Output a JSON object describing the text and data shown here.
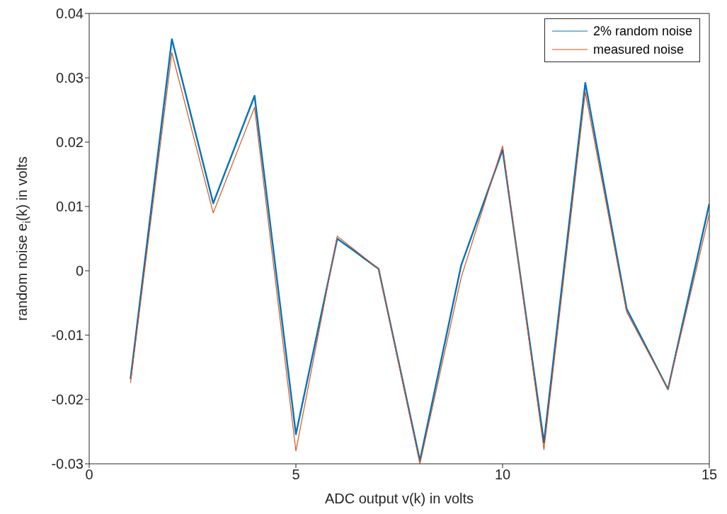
{
  "chart_data": {
    "type": "line",
    "xlabel": "ADC output v(k) in volts",
    "ylabel": "random noise e$_{i}$(k) in volts",
    "x": [
      1,
      2,
      3,
      4,
      5,
      6,
      7,
      8,
      9,
      10,
      11,
      12,
      13,
      14,
      15
    ],
    "series": [
      {
        "name": "2% random noise",
        "color": "#0072bd",
        "values": [
          -0.0168,
          0.036,
          0.0105,
          0.0272,
          -0.0254,
          0.005,
          0.0003,
          -0.0295,
          0.0009,
          0.0188,
          -0.0267,
          0.0292,
          -0.0059,
          -0.0184,
          0.0104
        ]
      },
      {
        "name": "measured noise",
        "color": "#d95319",
        "values": [
          -0.0174,
          0.0339,
          0.009,
          0.0254,
          -0.028,
          0.0054,
          0.0003,
          -0.03,
          -0.001,
          0.0194,
          -0.0278,
          0.0278,
          -0.0064,
          -0.0184,
          0.0088
        ]
      }
    ],
    "xlim": [
      0,
      15
    ],
    "xticks": [
      0,
      5,
      10,
      15
    ],
    "ylim": [
      -0.03,
      0.04
    ],
    "yticks": [
      -0.03,
      -0.02,
      -0.01,
      0,
      0.01,
      0.02,
      0.03,
      0.04
    ],
    "grid": false,
    "legend": "top right",
    "marker": "none",
    "line_style": "solid"
  }
}
